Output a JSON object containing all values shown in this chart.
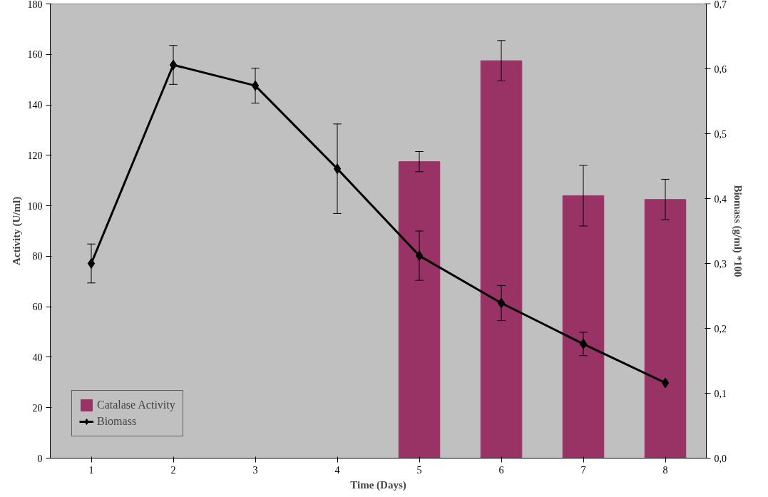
{
  "chart_data": {
    "type": "bar",
    "xlabel": "Time (Days)",
    "ylabel": "Activity (U/ml)",
    "y2label": "Biomass (g/ml) *100",
    "categories": [
      "1",
      "2",
      "3",
      "4",
      "5",
      "6",
      "7",
      "8"
    ],
    "series": [
      {
        "name": "Catalase Activity",
        "color": "#993366",
        "values": [
          0,
          0,
          0,
          0,
          117.5,
          157.5,
          104,
          102.5
        ],
        "errors": [
          null,
          null,
          null,
          null,
          4,
          8,
          12,
          8
        ]
      },
      {
        "name": "Biomass",
        "type": "line",
        "axis": "y2",
        "color": "#000000",
        "marker": "diamond",
        "values": [
          0.3,
          0.606,
          0.574,
          0.446,
          0.312,
          0.239,
          0.176,
          0.116
        ],
        "errors": [
          0.03,
          0.03,
          0.027,
          0.069,
          0.038,
          0.027,
          0.018,
          null
        ]
      }
    ],
    "ylim": [
      0,
      180
    ],
    "yticks": [
      0,
      20,
      40,
      60,
      80,
      100,
      120,
      140,
      160,
      180
    ],
    "y2lim": [
      0,
      0.7
    ],
    "y2ticks": [
      {
        "value": 0,
        "label": "0,0"
      },
      {
        "value": 0.1,
        "label": "0,1"
      },
      {
        "value": 0.2,
        "label": "0,2"
      },
      {
        "value": 0.3,
        "label": "0,3"
      },
      {
        "value": 0.4,
        "label": "0,4"
      },
      {
        "value": 0.5,
        "label": "0,5"
      },
      {
        "value": 0.6,
        "label": "0,6"
      },
      {
        "value": 0.7,
        "label": "0,7"
      }
    ],
    "grid": false,
    "legend": "bottom left"
  }
}
